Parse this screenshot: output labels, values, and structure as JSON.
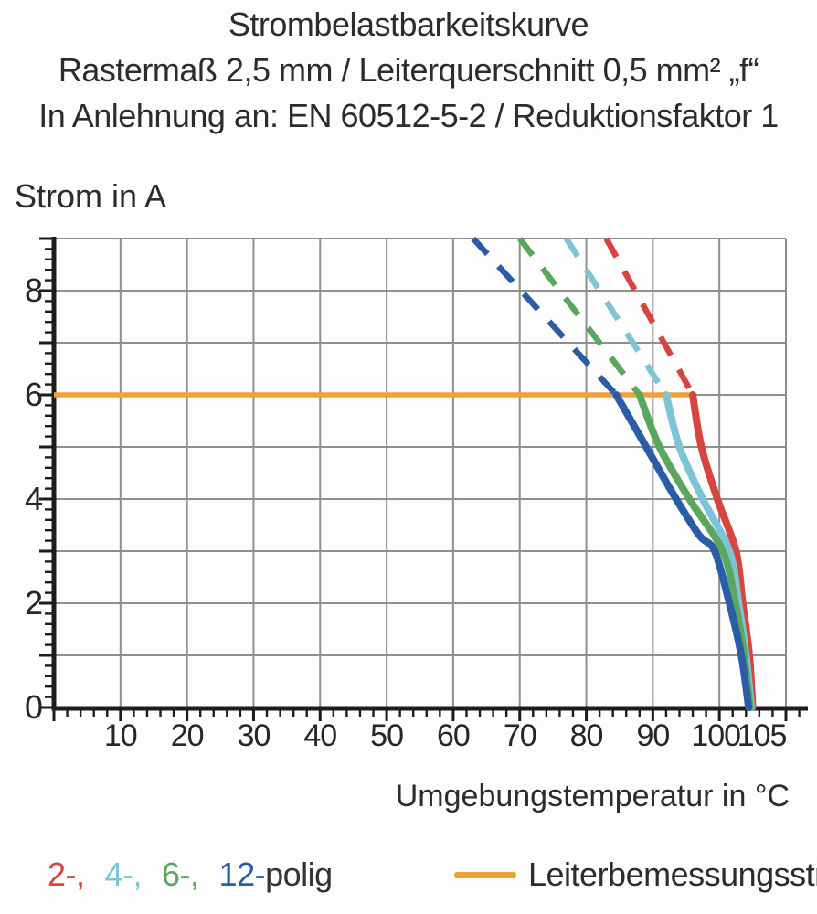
{
  "title": {
    "line1": "Strombelastbarkeitskurve",
    "line2": "Rastermaß 2,5 mm / Leiterquerschnitt 0,5 mm² „f“",
    "line3": "In Anlehnung an: EN 60512-5-2 / Reduktionsfaktor 1"
  },
  "axes": {
    "y_label": "Strom in A",
    "x_label": "Umgebungstemperatur in °C"
  },
  "chart_data": {
    "type": "line",
    "title": "Strombelastbarkeitskurve",
    "xlabel": "Umgebungstemperatur in °C",
    "ylabel": "Strom in A",
    "xlim": [
      0,
      110
    ],
    "ylim": [
      0,
      9
    ],
    "x_ticks": [
      10,
      20,
      30,
      40,
      50,
      60,
      70,
      80,
      90,
      100,
      105
    ],
    "y_ticks": [
      0,
      2,
      4,
      6,
      8
    ],
    "x_minor_step": 2,
    "y_minor_step": 0.2,
    "grid": {
      "x_step": 10,
      "y_step": 1,
      "color": "#8f8f8f"
    },
    "axis_color": "#1c1c1c",
    "reference_line": {
      "name": "Leiterbemessungsstrom",
      "y": 6,
      "x_start": 0,
      "x_end": 96,
      "color": "#f0a13c"
    },
    "series": [
      {
        "name": "2-polig",
        "color": "#d6453f",
        "dashed": [
          [
            83,
            9
          ],
          [
            96,
            6
          ]
        ],
        "solid": [
          [
            96,
            6
          ],
          [
            97.3,
            5
          ],
          [
            99.7,
            4
          ],
          [
            102.5,
            3
          ],
          [
            103.5,
            2
          ],
          [
            104.5,
            1
          ],
          [
            105,
            0
          ]
        ]
      },
      {
        "name": "4-polig",
        "color": "#7fc3d6",
        "dashed": [
          [
            77,
            9
          ],
          [
            92,
            6
          ]
        ],
        "solid": [
          [
            92,
            6
          ],
          [
            94,
            5
          ],
          [
            97.5,
            4
          ],
          [
            101.5,
            3
          ],
          [
            102.9,
            2
          ],
          [
            104,
            1
          ],
          [
            104.8,
            0
          ]
        ]
      },
      {
        "name": "6-polig",
        "color": "#5ba75f",
        "dashed": [
          [
            70,
            9
          ],
          [
            88,
            6
          ]
        ],
        "solid": [
          [
            88,
            6
          ],
          [
            91,
            5
          ],
          [
            95.5,
            4
          ],
          [
            100.5,
            3
          ],
          [
            102.4,
            2
          ],
          [
            103.7,
            1
          ],
          [
            104.6,
            0
          ]
        ]
      },
      {
        "name": "12-polig",
        "color": "#2b5ca6",
        "dashed": [
          [
            63,
            9
          ],
          [
            84.5,
            6
          ]
        ],
        "solid": [
          [
            84.5,
            6
          ],
          [
            89,
            5
          ],
          [
            93.5,
            4
          ],
          [
            97,
            3.3
          ],
          [
            99.3,
            3
          ],
          [
            101.5,
            2
          ],
          [
            103.3,
            1
          ],
          [
            104.4,
            0
          ]
        ]
      }
    ]
  },
  "legend": {
    "pole_items": [
      {
        "label": "2-,",
        "color": "#d6453f"
      },
      {
        "label": "4-,",
        "color": "#7fc3d6"
      },
      {
        "label": "6-,",
        "color": "#5ba75f"
      },
      {
        "label": "12-",
        "color": "#2b5ca6"
      }
    ],
    "pole_suffix": "polig",
    "reference_label": "Leiterbemessungsstrom",
    "reference_color": "#f0a13c"
  }
}
